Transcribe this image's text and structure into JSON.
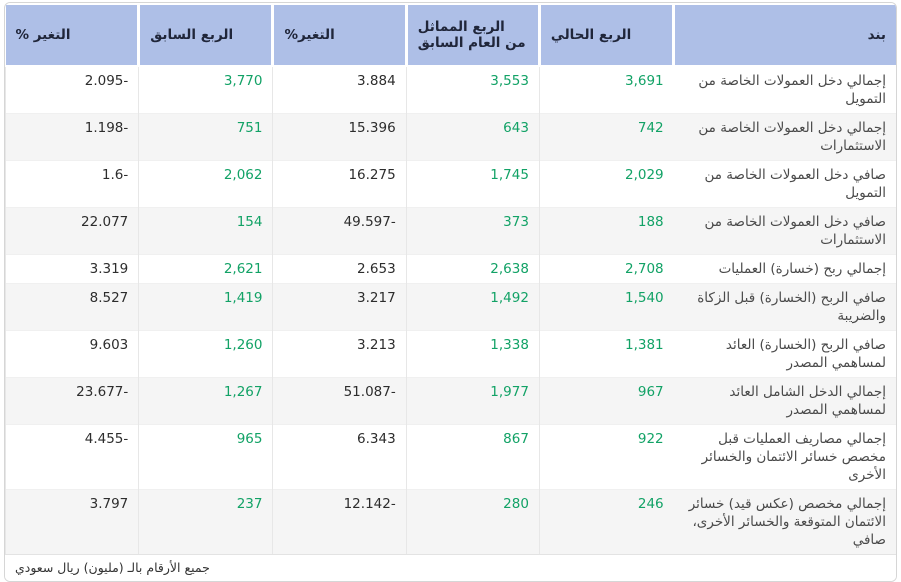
{
  "table": {
    "columns": [
      {
        "key": "item",
        "label": "بند",
        "style": "text"
      },
      {
        "key": "current_quarter",
        "label": "الربع الحالي",
        "style": "green"
      },
      {
        "key": "same_quarter_last_year",
        "label": "الربع المماثل من العام السابق",
        "style": "green"
      },
      {
        "key": "change_vs_same_quarter",
        "label": "التغير%",
        "style": "plain"
      },
      {
        "key": "previous_quarter",
        "label": "الربع السابق",
        "style": "green"
      },
      {
        "key": "change_vs_previous_quarter",
        "label": "التغير %",
        "style": "plain"
      }
    ],
    "rows": [
      {
        "item": "إجمالي دخل العمولات الخاصة من التمويل",
        "current_quarter": "3,691",
        "same_quarter_last_year": "3,553",
        "change_vs_same_quarter": "3.884",
        "previous_quarter": "3,770",
        "change_vs_previous_quarter": "2.095-"
      },
      {
        "item": "إجمالي دخل العمولات الخاصة من الاستثمارات",
        "current_quarter": "742",
        "same_quarter_last_year": "643",
        "change_vs_same_quarter": "15.396",
        "previous_quarter": "751",
        "change_vs_previous_quarter": "1.198-"
      },
      {
        "item": "صافي دخل العمولات الخاصة من التمويل",
        "current_quarter": "2,029",
        "same_quarter_last_year": "1,745",
        "change_vs_same_quarter": "16.275",
        "previous_quarter": "2,062",
        "change_vs_previous_quarter": "1.6-"
      },
      {
        "item": "صافي دخل العمولات الخاصة من الاستثمارات",
        "current_quarter": "188",
        "same_quarter_last_year": "373",
        "change_vs_same_quarter": "49.597-",
        "previous_quarter": "154",
        "change_vs_previous_quarter": "22.077"
      },
      {
        "item": "إجمالي ربح (خسارة) العمليات",
        "current_quarter": "2,708",
        "same_quarter_last_year": "2,638",
        "change_vs_same_quarter": "2.653",
        "previous_quarter": "2,621",
        "change_vs_previous_quarter": "3.319"
      },
      {
        "item": "صافي الربح (الخسارة) قبل الزكاة والضريبة",
        "current_quarter": "1,540",
        "same_quarter_last_year": "1,492",
        "change_vs_same_quarter": "3.217",
        "previous_quarter": "1,419",
        "change_vs_previous_quarter": "8.527"
      },
      {
        "item": "صافي الربح (الخسارة) العائد لمساهمي المصدر",
        "current_quarter": "1,381",
        "same_quarter_last_year": "1,338",
        "change_vs_same_quarter": "3.213",
        "previous_quarter": "1,260",
        "change_vs_previous_quarter": "9.603"
      },
      {
        "item": "إجمالي الدخل الشامل العائد لمساهمي المصدر",
        "current_quarter": "967",
        "same_quarter_last_year": "1,977",
        "change_vs_same_quarter": "51.087-",
        "previous_quarter": "1,267",
        "change_vs_previous_quarter": "23.677-"
      },
      {
        "item": "إجمالي مصاريف العمليات قبل مخصص خسائر الائتمان والخسائر الأخرى",
        "current_quarter": "922",
        "same_quarter_last_year": "867",
        "change_vs_same_quarter": "6.343",
        "previous_quarter": "965",
        "change_vs_previous_quarter": "4.455-"
      },
      {
        "item": "إجمالي مخصص (عكس قيد) خسائر الائتمان المتوقعة والخسائر الأخرى، صافي",
        "current_quarter": "246",
        "same_quarter_last_year": "280",
        "change_vs_same_quarter": "12.142-",
        "previous_quarter": "237",
        "change_vs_previous_quarter": "3.797"
      }
    ],
    "footnote": "جميع الأرقام بالـ (مليون) ريال سعودي"
  },
  "colors": {
    "header_bg": "#aebfe7",
    "header_text": "#20263a",
    "positive_value": "#12a266",
    "neutral_value": "#2d2d2d",
    "item_text": "#4a4a4a",
    "stripe_bg": "#f5f5f5"
  }
}
